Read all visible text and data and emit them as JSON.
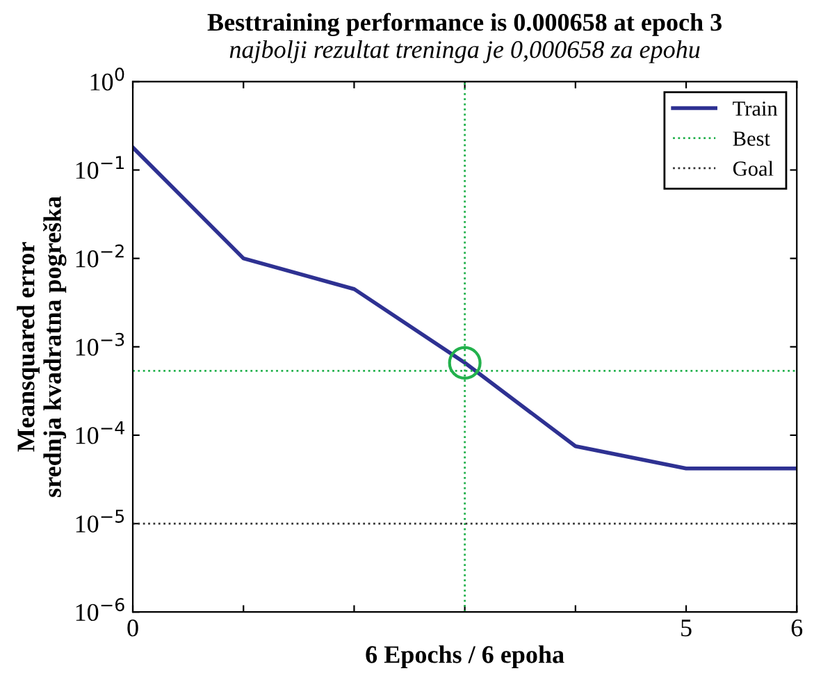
{
  "chart_data": {
    "type": "line",
    "title": "Besttraining performance is 0.000658 at epoch 3",
    "subtitle": "najbolji rezultat treninga je 0,000658 za epohu",
    "xlabel": "6 Epochs / 6 epoha",
    "ylabel": "Meansquared error\nsrednja kvadratna pogreška",
    "x": [
      0,
      1,
      2,
      3,
      4,
      5,
      6
    ],
    "series": [
      {
        "name": "Train",
        "color": "#2e3192",
        "values": [
          0.18,
          0.01,
          0.0045,
          0.00066,
          7.5e-05,
          4.2e-05,
          4.2e-05
        ]
      },
      {
        "type": "scatter",
        "color": "#22b14c",
        "x": [
          3
        ],
        "values": [
          0.000658
        ],
        "marker": "circle"
      }
    ],
    "ref_lines": [
      {
        "axis": "x",
        "value": 3,
        "color": "#22b14c",
        "line_style": "dotted"
      },
      {
        "axis": "y",
        "value": 0.000535,
        "label": "Best",
        "color": "#22b14c",
        "line_style": "dotted"
      },
      {
        "axis": "y",
        "value": 1e-05,
        "label": "Goal",
        "color": "#333333",
        "line_style": "dotted"
      }
    ],
    "log": "y",
    "xlim": [
      0,
      6
    ],
    "ylim": [
      1e-06,
      1
    ],
    "xticks": [
      0,
      {
        "value": 1,
        "label": null
      },
      {
        "value": 2,
        "label": null
      },
      {
        "value": 3,
        "label": null
      },
      {
        "value": 4,
        "label": null
      },
      5,
      6
    ],
    "yticks": [
      {
        "value": 1e-06,
        "label": "10$^{−6}$"
      },
      {
        "value": 1e-05,
        "label": "10$^{−5}$"
      },
      {
        "value": 0.0001,
        "label": "10$^{−4}$"
      },
      {
        "value": 0.001,
        "label": "10$^{−3}$"
      },
      {
        "value": 0.01,
        "label": "10$^{−2}$"
      },
      {
        "value": 0.1,
        "label": "10$^{−1}$"
      },
      {
        "value": 1,
        "label": "10$^{0}$"
      }
    ],
    "grid": false,
    "legend": "top right",
    "marker": "none",
    "line_style": "solid"
  }
}
